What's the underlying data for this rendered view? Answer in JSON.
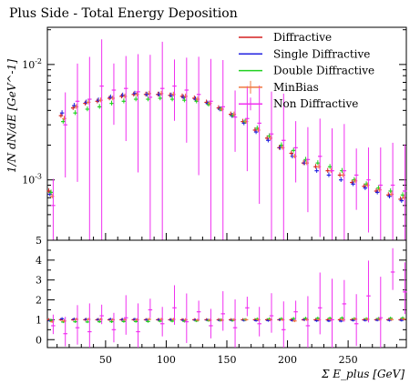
{
  "chart_data": {
    "type": "line",
    "title": "Plus Side - Total Energy Deposition",
    "xlabel": "Σ E_plus [GeV]",
    "ylabel": "1/N dN/dE [GeV^-1]",
    "xlim": [
      2,
      298
    ],
    "ylim": [
      0.0003,
      0.021
    ],
    "y_scale": "log",
    "ratio_ylim": [
      -0.4,
      5
    ],
    "x_ticks": [
      "50",
      "100",
      "150",
      "200",
      "250"
    ],
    "y_ticks": [
      "10^-2",
      "10^-3"
    ],
    "ratio_ticks": [
      "0",
      "1",
      "2",
      "3",
      "4",
      "5"
    ],
    "legend_position": "top-right",
    "grid": false,
    "x": [
      5,
      15,
      25,
      35,
      45,
      55,
      65,
      75,
      85,
      95,
      105,
      115,
      125,
      135,
      145,
      155,
      165,
      175,
      185,
      195,
      205,
      215,
      225,
      235,
      245,
      255,
      265,
      275,
      285,
      295
    ],
    "series": [
      {
        "name": "Diffractive",
        "color": "#d42020",
        "values": [
          0.0008,
          0.0036,
          0.0042,
          0.0046,
          0.0048,
          0.0051,
          0.0053,
          0.0055,
          0.0055,
          0.0055,
          0.0054,
          0.0053,
          0.0051,
          0.0047,
          0.0042,
          0.0037,
          0.0032,
          0.0027,
          0.0023,
          0.0019,
          0.0017,
          0.0014,
          0.0013,
          0.0012,
          0.0011,
          0.00095,
          0.00088,
          0.0008,
          0.00074,
          0.00068
        ],
        "ratio": [
          1.0,
          1.0,
          1.0,
          1.0,
          1.0,
          1.0,
          1.0,
          1.0,
          1.0,
          1.0,
          1.0,
          1.0,
          1.0,
          1.0,
          1.0,
          1.0,
          1.0,
          1.0,
          1.0,
          1.0,
          1.0,
          1.0,
          1.0,
          1.0,
          1.0,
          1.0,
          1.0,
          1.0,
          1.0,
          1.0
        ]
      },
      {
        "name": "Single Diffractive",
        "color": "#2020e0",
        "values": [
          0.00075,
          0.0038,
          0.0044,
          0.0047,
          0.0049,
          0.0052,
          0.0054,
          0.0056,
          0.0055,
          0.0055,
          0.0054,
          0.0052,
          0.005,
          0.0046,
          0.0041,
          0.0036,
          0.0031,
          0.0026,
          0.0022,
          0.0019,
          0.0016,
          0.0014,
          0.0012,
          0.0011,
          0.001,
          0.00092,
          0.00085,
          0.00078,
          0.00072,
          0.00066
        ],
        "ratio": [
          0.95,
          1.05,
          1.03,
          1.02,
          1.01,
          1.02,
          1.01,
          1.02,
          1.0,
          1.0,
          1.0,
          0.98,
          0.98,
          0.98,
          0.97,
          0.97,
          0.97,
          0.96,
          0.96,
          1.0,
          0.96,
          1.0,
          0.95,
          0.94,
          0.93,
          0.97,
          0.97,
          0.98,
          0.97,
          0.97
        ]
      },
      {
        "name": "Double Diffractive",
        "color": "#20d020",
        "values": [
          0.00078,
          0.0032,
          0.0038,
          0.0041,
          0.0043,
          0.0046,
          0.0048,
          0.005,
          0.005,
          0.0051,
          0.005,
          0.0049,
          0.0048,
          0.0045,
          0.0041,
          0.0036,
          0.0032,
          0.0028,
          0.0024,
          0.002,
          0.0018,
          0.0015,
          0.0014,
          0.0013,
          0.0012,
          0.001,
          0.00092,
          0.00085,
          0.0008,
          0.00074
        ],
        "ratio": [
          0.97,
          0.89,
          0.9,
          0.89,
          0.9,
          0.9,
          0.91,
          0.91,
          0.91,
          0.93,
          0.93,
          0.92,
          0.94,
          0.96,
          0.98,
          0.97,
          1.0,
          1.04,
          1.04,
          1.05,
          1.06,
          1.07,
          1.08,
          1.08,
          1.09,
          1.05,
          1.05,
          1.06,
          1.08,
          1.09
        ]
      },
      {
        "name": "MinBias",
        "color": "#f07840",
        "values": [
          0.00072,
          0.0034,
          0.0043,
          0.0047,
          0.0049,
          0.0051,
          0.0053,
          0.0055,
          0.0056,
          0.0056,
          0.0055,
          0.0053,
          0.005,
          0.0046,
          0.0041,
          0.0037,
          0.0032,
          0.0027,
          0.0023,
          0.0019,
          0.0016,
          0.0014,
          0.0013,
          0.0012,
          0.0011,
          0.00098,
          0.0009,
          0.00082,
          0.00075,
          0.0007
        ],
        "ratio": [
          0.9,
          0.94,
          1.02,
          1.02,
          1.02,
          1.0,
          1.0,
          1.0,
          1.02,
          1.02,
          1.02,
          1.0,
          0.98,
          0.98,
          0.98,
          1.0,
          1.0,
          1.0,
          1.0,
          1.0,
          0.94,
          1.0,
          1.0,
          1.0,
          1.0,
          1.03,
          1.02,
          1.02,
          1.01,
          1.03
        ]
      },
      {
        "name": "Non Diffractive",
        "color": "#f030f0",
        "values": [
          0.0006,
          0.003,
          0.0048,
          0.005,
          0.0065,
          0.006,
          0.0062,
          0.0058,
          0.0052,
          0.0062,
          0.0065,
          0.006,
          0.0055,
          0.0048,
          0.0043,
          0.0035,
          0.0034,
          0.0031,
          0.0025,
          0.0022,
          0.0019,
          0.0015,
          0.0016,
          0.0012,
          0.0012,
          0.0011,
          0.001,
          0.0009,
          0.0009,
          0.0008
        ],
        "ratio": [
          0.7,
          0.3,
          0.6,
          0.4,
          1.2,
          0.5,
          1.1,
          0.4,
          1.5,
          0.8,
          1.6,
          0.9,
          1.4,
          0.7,
          1.3,
          0.6,
          1.6,
          0.8,
          1.2,
          0.5,
          1.4,
          0.7,
          1.6,
          1.0,
          1.8,
          0.8,
          2.2,
          1.1,
          3.4,
          2.4
        ]
      }
    ]
  }
}
